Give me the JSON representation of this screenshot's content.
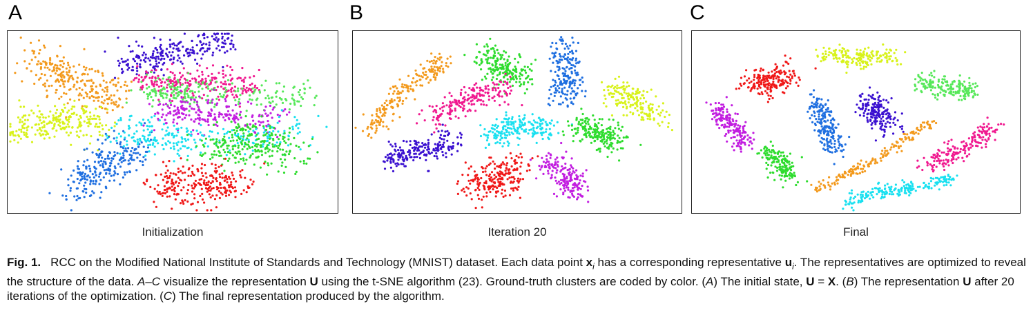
{
  "panels": [
    {
      "letter": "A",
      "caption": "Initialization"
    },
    {
      "letter": "B",
      "caption": "Iteration 20"
    },
    {
      "letter": "C",
      "caption": "Final"
    }
  ],
  "figure_caption": {
    "label": "Fig. 1.",
    "segments": [
      {
        "t": "RCC on the Modified National Institute of Standards and Technology (MNIST) dataset. Each data point "
      },
      {
        "t": "x",
        "b": true
      },
      {
        "t": "i",
        "sub": true,
        "i": true
      },
      {
        "t": " has a corresponding representative "
      },
      {
        "t": "u",
        "b": true
      },
      {
        "t": "i",
        "sub": true,
        "i": true
      },
      {
        "t": ". The representatives are optimized to reveal the structure of the data. "
      },
      {
        "t": "A–C",
        "i": true
      },
      {
        "t": " visualize the representation "
      },
      {
        "t": "U",
        "b": true
      },
      {
        "t": " using the t-SNE algorithm (23). Ground-truth clusters are coded by color. ("
      },
      {
        "t": "A",
        "i": true
      },
      {
        "t": ") The initial state, "
      },
      {
        "t": "U",
        "b": true
      },
      {
        "t": " = "
      },
      {
        "t": "X",
        "b": true
      },
      {
        "t": ". ("
      },
      {
        "t": "B",
        "i": true
      },
      {
        "t": ") The representation "
      },
      {
        "t": "U",
        "b": true
      },
      {
        "t": " after 20 iterations of the optimization. ("
      },
      {
        "t": "C",
        "i": true
      },
      {
        "t": ") The final representation produced by the algorithm."
      }
    ]
  },
  "colors": {
    "orange": "#f39a1d",
    "yellow": "#d8f21a",
    "blue": "#1f6fe0",
    "indigo": "#3a10d0",
    "pink": "#f0188f",
    "green": "#2edc2e",
    "magenta": "#c21ee0",
    "cyan": "#19e0f0",
    "red": "#f01818",
    "lightgreen": "#57e85a"
  },
  "scatter": [
    {
      "panel": "A",
      "clusters": [
        {
          "color": "orange",
          "path": [
            [
              0.08,
              0.17
            ],
            [
              0.19,
              0.27
            ],
            [
              0.34,
              0.36
            ]
          ],
          "spread": 0.055,
          "n": 260
        },
        {
          "color": "yellow",
          "path": [
            [
              0.02,
              0.55
            ],
            [
              0.14,
              0.49
            ],
            [
              0.27,
              0.51
            ]
          ],
          "spread": 0.05,
          "n": 240
        },
        {
          "color": "blue",
          "path": [
            [
              0.19,
              0.88
            ],
            [
              0.29,
              0.74
            ],
            [
              0.38,
              0.66
            ]
          ],
          "spread": 0.055,
          "n": 240
        },
        {
          "color": "indigo",
          "path": [
            [
              0.35,
              0.19
            ],
            [
              0.5,
              0.11
            ],
            [
              0.68,
              0.05
            ]
          ],
          "spread": 0.04,
          "n": 230
        },
        {
          "color": "pink",
          "path": [
            [
              0.4,
              0.27
            ],
            [
              0.58,
              0.28
            ],
            [
              0.74,
              0.3
            ]
          ],
          "spread": 0.04,
          "n": 230
        },
        {
          "color": "lightgreen",
          "path": [
            [
              0.42,
              0.33
            ],
            [
              0.6,
              0.34
            ],
            [
              0.92,
              0.37
            ]
          ],
          "spread": 0.04,
          "n": 230
        },
        {
          "color": "magenta",
          "path": [
            [
              0.46,
              0.45
            ],
            [
              0.62,
              0.45
            ],
            [
              0.82,
              0.5
            ]
          ],
          "spread": 0.045,
          "n": 230
        },
        {
          "color": "cyan",
          "path": [
            [
              0.34,
              0.53
            ],
            [
              0.52,
              0.61
            ],
            [
              0.9,
              0.55
            ]
          ],
          "spread": 0.05,
          "n": 240
        },
        {
          "color": "green",
          "path": [
            [
              0.62,
              0.64
            ],
            [
              0.74,
              0.6
            ],
            [
              0.88,
              0.69
            ]
          ],
          "spread": 0.06,
          "n": 250
        },
        {
          "color": "red",
          "path": [
            [
              0.46,
              0.84
            ],
            [
              0.58,
              0.86
            ],
            [
              0.7,
              0.84
            ]
          ],
          "spread": 0.055,
          "n": 250
        }
      ]
    },
    {
      "panel": "B",
      "clusters": [
        {
          "color": "orange",
          "path": [
            [
              0.05,
              0.54
            ],
            [
              0.15,
              0.33
            ],
            [
              0.28,
              0.16
            ]
          ],
          "spread": 0.028,
          "n": 200
        },
        {
          "color": "green",
          "path": [
            [
              0.4,
              0.12
            ],
            [
              0.44,
              0.2
            ],
            [
              0.52,
              0.25
            ]
          ],
          "spread": 0.04,
          "n": 200
        },
        {
          "color": "blue",
          "path": [
            [
              0.63,
              0.08
            ],
            [
              0.66,
              0.25
            ],
            [
              0.64,
              0.39
            ]
          ],
          "spread": 0.04,
          "n": 200
        },
        {
          "color": "pink",
          "path": [
            [
              0.24,
              0.48
            ],
            [
              0.36,
              0.36
            ],
            [
              0.48,
              0.33
            ]
          ],
          "spread": 0.035,
          "n": 200
        },
        {
          "color": "yellow",
          "path": [
            [
              0.79,
              0.32
            ],
            [
              0.86,
              0.38
            ],
            [
              0.92,
              0.48
            ]
          ],
          "spread": 0.04,
          "n": 180
        },
        {
          "color": "cyan",
          "path": [
            [
              0.42,
              0.59
            ],
            [
              0.5,
              0.51
            ],
            [
              0.62,
              0.54
            ]
          ],
          "spread": 0.035,
          "n": 200
        },
        {
          "color": "green",
          "path": [
            [
              0.68,
              0.52
            ],
            [
              0.75,
              0.56
            ],
            [
              0.8,
              0.61
            ]
          ],
          "spread": 0.04,
          "n": 200
        },
        {
          "color": "indigo",
          "path": [
            [
              0.11,
              0.71
            ],
            [
              0.21,
              0.65
            ],
            [
              0.32,
              0.6
            ]
          ],
          "spread": 0.035,
          "n": 200
        },
        {
          "color": "magenta",
          "path": [
            [
              0.59,
              0.71
            ],
            [
              0.65,
              0.81
            ],
            [
              0.69,
              0.89
            ]
          ],
          "spread": 0.04,
          "n": 180
        },
        {
          "color": "red",
          "path": [
            [
              0.36,
              0.85
            ],
            [
              0.44,
              0.82
            ],
            [
              0.5,
              0.75
            ]
          ],
          "spread": 0.05,
          "n": 220
        }
      ]
    },
    {
      "panel": "C",
      "clusters": [
        {
          "color": "yellow",
          "path": [
            [
              0.4,
              0.13
            ],
            [
              0.5,
              0.15
            ],
            [
              0.62,
              0.14
            ]
          ],
          "spread": 0.025,
          "n": 180
        },
        {
          "color": "red",
          "path": [
            [
              0.18,
              0.26
            ],
            [
              0.24,
              0.3
            ],
            [
              0.3,
              0.22
            ]
          ],
          "spread": 0.035,
          "n": 200
        },
        {
          "color": "lightgreen",
          "path": [
            [
              0.7,
              0.28
            ],
            [
              0.78,
              0.31
            ],
            [
              0.86,
              0.33
            ]
          ],
          "spread": 0.03,
          "n": 180
        },
        {
          "color": "blue",
          "path": [
            [
              0.38,
              0.38
            ],
            [
              0.41,
              0.54
            ],
            [
              0.44,
              0.66
            ]
          ],
          "spread": 0.03,
          "n": 200
        },
        {
          "color": "indigo",
          "path": [
            [
              0.53,
              0.38
            ],
            [
              0.57,
              0.45
            ],
            [
              0.6,
              0.53
            ]
          ],
          "spread": 0.035,
          "n": 180
        },
        {
          "color": "magenta",
          "path": [
            [
              0.07,
              0.42
            ],
            [
              0.12,
              0.52
            ],
            [
              0.16,
              0.62
            ]
          ],
          "spread": 0.03,
          "n": 180
        },
        {
          "color": "green",
          "path": [
            [
              0.23,
              0.66
            ],
            [
              0.27,
              0.74
            ],
            [
              0.31,
              0.79
            ]
          ],
          "spread": 0.03,
          "n": 160
        },
        {
          "color": "orange",
          "path": [
            [
              0.37,
              0.88
            ],
            [
              0.55,
              0.72
            ],
            [
              0.73,
              0.5
            ]
          ],
          "spread": 0.014,
          "n": 180
        },
        {
          "color": "pink",
          "path": [
            [
              0.72,
              0.73
            ],
            [
              0.82,
              0.65
            ],
            [
              0.92,
              0.53
            ]
          ],
          "spread": 0.028,
          "n": 180
        },
        {
          "color": "cyan",
          "path": [
            [
              0.47,
              0.94
            ],
            [
              0.58,
              0.88
            ],
            [
              0.68,
              0.86
            ]
          ],
          "spread": 0.018,
          "n": 140
        },
        {
          "color": "cyan",
          "path": [
            [
              0.7,
              0.85
            ],
            [
              0.76,
              0.83
            ],
            [
              0.8,
              0.81
            ]
          ],
          "spread": 0.015,
          "n": 60
        }
      ]
    }
  ]
}
